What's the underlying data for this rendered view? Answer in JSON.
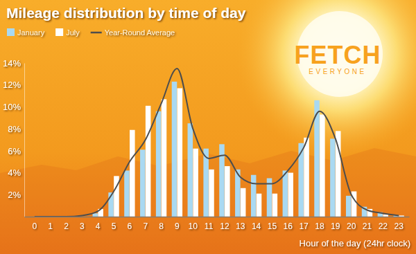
{
  "chart_data": {
    "type": "bar",
    "title": "Mileage distribution by time of day",
    "x_label": "Hour of the day (24hr clock)",
    "annotations": [
      "FETCH",
      "EVERYONE"
    ],
    "categories": [
      "0",
      "1",
      "2",
      "3",
      "4",
      "5",
      "6",
      "7",
      "8",
      "9",
      "10",
      "11",
      "12",
      "13",
      "14",
      "15",
      "16",
      "17",
      "18",
      "19",
      "20",
      "21",
      "22",
      "23"
    ],
    "series": [
      {
        "name": "January",
        "type": "bar",
        "color": "#a9d9f2",
        "values": [
          0,
          0,
          0,
          0,
          0.3,
          2.2,
          4.2,
          6.1,
          9.6,
          12.3,
          8.5,
          6.2,
          6.6,
          4.3,
          3.8,
          3.5,
          4.2,
          6.7,
          10.6,
          7.1,
          1.9,
          0.9,
          0.4,
          0.1
        ]
      },
      {
        "name": "July",
        "type": "bar",
        "color": "#ffffff",
        "values": [
          0,
          0,
          0,
          0,
          0.7,
          3.7,
          7.9,
          10.1,
          10.7,
          11.7,
          6.2,
          4.3,
          4.6,
          2.6,
          2.1,
          2.1,
          4.0,
          7.2,
          9.3,
          7.8,
          2.3,
          0.7,
          0.2,
          0.1
        ]
      },
      {
        "name": "Year-Round Average",
        "type": "line",
        "color": "#4d4d4d",
        "values": [
          0,
          0,
          0,
          0.1,
          0.5,
          2.3,
          5.0,
          7.0,
          10.3,
          13.5,
          8.0,
          5.3,
          5.6,
          3.6,
          3.0,
          3.0,
          4.2,
          6.3,
          9.6,
          7.1,
          2.0,
          0.6,
          0.3,
          0.1
        ]
      }
    ],
    "ylim": [
      0,
      14
    ],
    "yticks": [
      {
        "value": 2,
        "label": "2%"
      },
      {
        "value": 4,
        "label": "4%"
      },
      {
        "value": 6,
        "label": "6%"
      },
      {
        "value": 8,
        "label": "8%"
      },
      {
        "value": 10,
        "label": "10%"
      },
      {
        "value": 12,
        "label": "12%"
      },
      {
        "value": 14,
        "label": "14%"
      }
    ],
    "grid": false,
    "legend": "top-left"
  }
}
